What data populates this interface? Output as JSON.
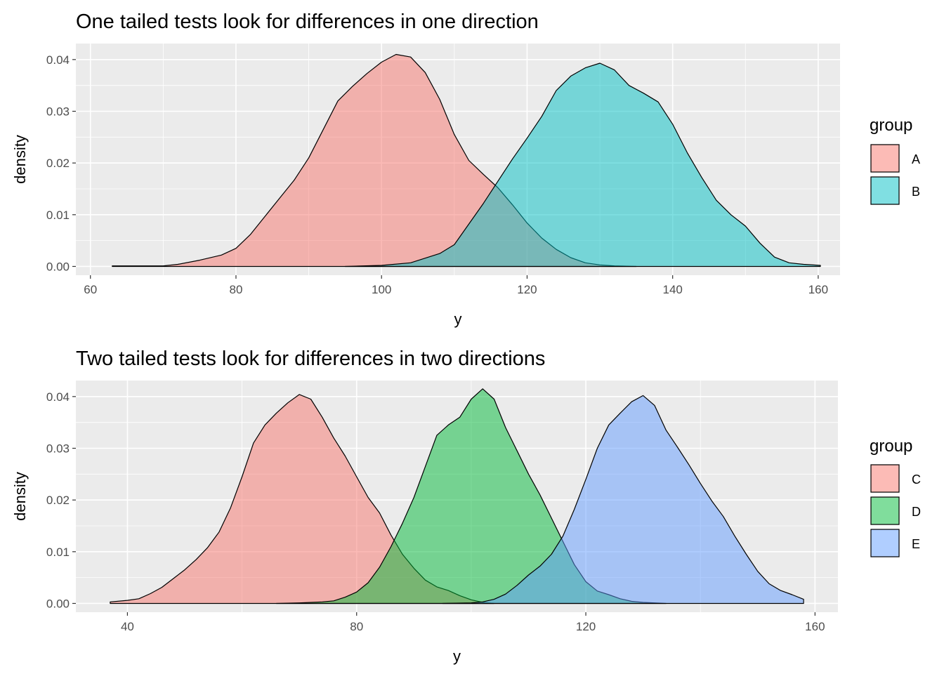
{
  "chart_data": [
    {
      "type": "area",
      "title": "One tailed tests look for differences in one direction",
      "xlabel": "y",
      "ylabel": "density",
      "xlim": [
        58,
        163
      ],
      "ylim": [
        -0.0017,
        0.0431
      ],
      "x_ticks": [
        60,
        80,
        100,
        120,
        140,
        160
      ],
      "x_tick_labels": [
        "60",
        "80",
        "100",
        "120",
        "140",
        "160"
      ],
      "y_ticks": [
        0.0,
        0.01,
        0.02,
        0.03,
        0.04
      ],
      "y_tick_labels": [
        "0.00",
        "0.01",
        "0.02",
        "0.03",
        "0.04"
      ],
      "grid": true,
      "legend": {
        "title": "group",
        "position": "right"
      },
      "series": [
        {
          "name": "A",
          "color": "#F8766D",
          "x": [
            63,
            66,
            70,
            72,
            75,
            78,
            80,
            82,
            84,
            86,
            88,
            90,
            92,
            94,
            96,
            98,
            100,
            102,
            104,
            106,
            108,
            110,
            112,
            114,
            116,
            118,
            120,
            122,
            124,
            126,
            128,
            130,
            132,
            135
          ],
          "y": [
            0.0001,
            0.0001,
            0.0001,
            0.0004,
            0.0012,
            0.0022,
            0.0035,
            0.0062,
            0.0097,
            0.0132,
            0.0167,
            0.021,
            0.0265,
            0.032,
            0.0348,
            0.0373,
            0.0395,
            0.041,
            0.0405,
            0.0375,
            0.0323,
            0.0255,
            0.0205,
            0.0178,
            0.0152,
            0.0119,
            0.0084,
            0.0055,
            0.0033,
            0.0017,
            0.0007,
            0.0003,
            0.0001,
            0.0
          ]
        },
        {
          "name": "B",
          "color": "#00BFC4",
          "x": [
            95,
            100,
            104,
            108,
            110,
            112,
            114,
            116,
            118,
            120,
            122,
            124,
            126,
            128,
            130,
            132,
            134,
            136,
            138,
            140,
            142,
            144,
            146,
            148,
            150,
            152,
            154,
            156,
            158,
            160.3
          ],
          "y": [
            0.0,
            0.0002,
            0.0007,
            0.0025,
            0.0042,
            0.0082,
            0.0122,
            0.0165,
            0.0208,
            0.0248,
            0.029,
            0.034,
            0.0368,
            0.0384,
            0.0393,
            0.038,
            0.035,
            0.0335,
            0.0318,
            0.0275,
            0.022,
            0.0172,
            0.0128,
            0.01,
            0.0078,
            0.0045,
            0.0018,
            0.0007,
            0.0004,
            0.0002
          ]
        }
      ]
    },
    {
      "type": "area",
      "title": "Two tailed tests look for differences in two directions",
      "xlabel": "y",
      "ylabel": "density",
      "xlim": [
        31,
        164
      ],
      "ylim": [
        -0.0017,
        0.0431
      ],
      "x_ticks": [
        40,
        80,
        120,
        160
      ],
      "x_tick_labels": [
        "40",
        "80",
        "120",
        "160"
      ],
      "y_ticks": [
        0.0,
        0.01,
        0.02,
        0.03,
        0.04
      ],
      "y_tick_labels": [
        "0.00",
        "0.01",
        "0.02",
        "0.03",
        "0.04"
      ],
      "grid": true,
      "legend": {
        "title": "group",
        "position": "right"
      },
      "series": [
        {
          "name": "C",
          "color": "#F8766D",
          "x": [
            37,
            40,
            42,
            44,
            46,
            48,
            50,
            52,
            54,
            56,
            58,
            60,
            62,
            64,
            66,
            68,
            70,
            72,
            74,
            76,
            78,
            80,
            82,
            84,
            86,
            88,
            90,
            92,
            94,
            96,
            98,
            100,
            102,
            104
          ],
          "y": [
            0.0003,
            0.0006,
            0.0009,
            0.0019,
            0.0031,
            0.0048,
            0.0065,
            0.0085,
            0.0108,
            0.0138,
            0.0185,
            0.0245,
            0.031,
            0.0345,
            0.0368,
            0.0388,
            0.0404,
            0.0395,
            0.036,
            0.032,
            0.0285,
            0.0245,
            0.0205,
            0.0175,
            0.0132,
            0.0095,
            0.0068,
            0.0045,
            0.0032,
            0.0025,
            0.0015,
            0.0007,
            0.0002,
            0.0
          ]
        },
        {
          "name": "D",
          "color": "#00BA38",
          "x": [
            66,
            70,
            74,
            76,
            78,
            80,
            82,
            84,
            86,
            88,
            90,
            92,
            94,
            96,
            98,
            100,
            102,
            104,
            106,
            108,
            110,
            112,
            114,
            116,
            118,
            120,
            122,
            124,
            126,
            128,
            130,
            134
          ],
          "y": [
            0.0,
            0.0001,
            0.0003,
            0.0005,
            0.0012,
            0.0022,
            0.004,
            0.007,
            0.011,
            0.0155,
            0.0205,
            0.0265,
            0.0325,
            0.0345,
            0.036,
            0.0395,
            0.0415,
            0.0395,
            0.034,
            0.0295,
            0.025,
            0.021,
            0.0165,
            0.012,
            0.0075,
            0.0042,
            0.0024,
            0.0017,
            0.0009,
            0.0004,
            0.0002,
            0.0
          ]
        },
        {
          "name": "E",
          "color": "#619CFF",
          "x": [
            95,
            100,
            102,
            104,
            106,
            108,
            110,
            112,
            114,
            116,
            118,
            120,
            122,
            124,
            126,
            128,
            130,
            132,
            134,
            136,
            138,
            140,
            142,
            144,
            146,
            148,
            150,
            152,
            154,
            156,
            158
          ],
          "y": [
            0.0,
            0.0001,
            0.0003,
            0.0008,
            0.0018,
            0.0035,
            0.0055,
            0.0072,
            0.0095,
            0.013,
            0.0182,
            0.024,
            0.03,
            0.0345,
            0.0368,
            0.039,
            0.0402,
            0.0383,
            0.0335,
            0.0302,
            0.0268,
            0.0232,
            0.0198,
            0.0168,
            0.013,
            0.0095,
            0.0062,
            0.0038,
            0.0025,
            0.0017,
            0.0008
          ]
        }
      ]
    }
  ]
}
